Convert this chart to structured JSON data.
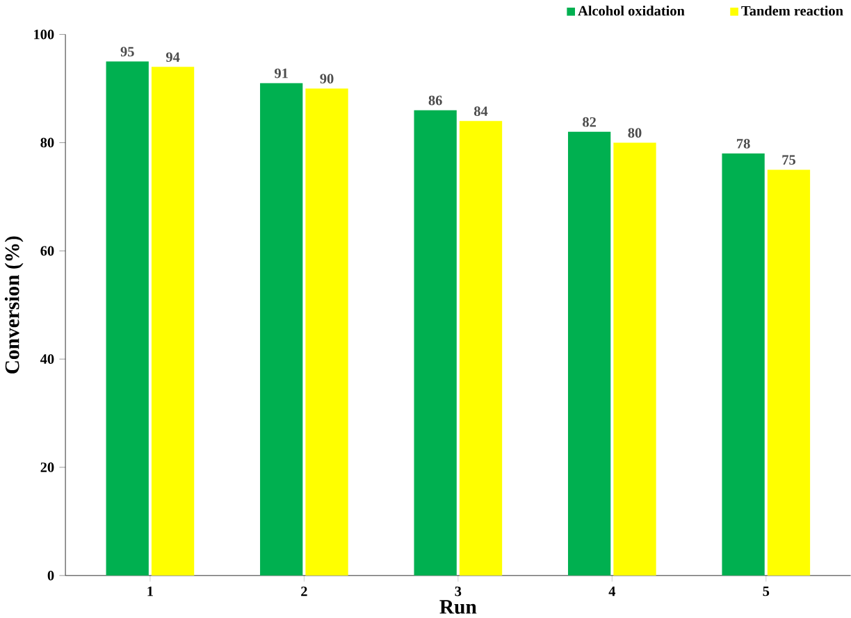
{
  "chart_data": {
    "type": "bar",
    "xlabel": "Run",
    "ylabel": "Conversion (%)",
    "categories": [
      "1",
      "2",
      "3",
      "4",
      "5"
    ],
    "series": [
      {
        "name": "Alcohol oxidation",
        "color": "#00b050",
        "values": [
          95,
          91,
          86,
          82,
          78
        ]
      },
      {
        "name": "Tandem reaction",
        "color": "#ffff00",
        "values": [
          94,
          90,
          84,
          80,
          75
        ]
      }
    ],
    "ylim": [
      0,
      100
    ],
    "yticks": [
      0,
      20,
      40,
      60,
      80,
      100
    ],
    "data_labels": true,
    "legend": "top right",
    "grid": false
  }
}
